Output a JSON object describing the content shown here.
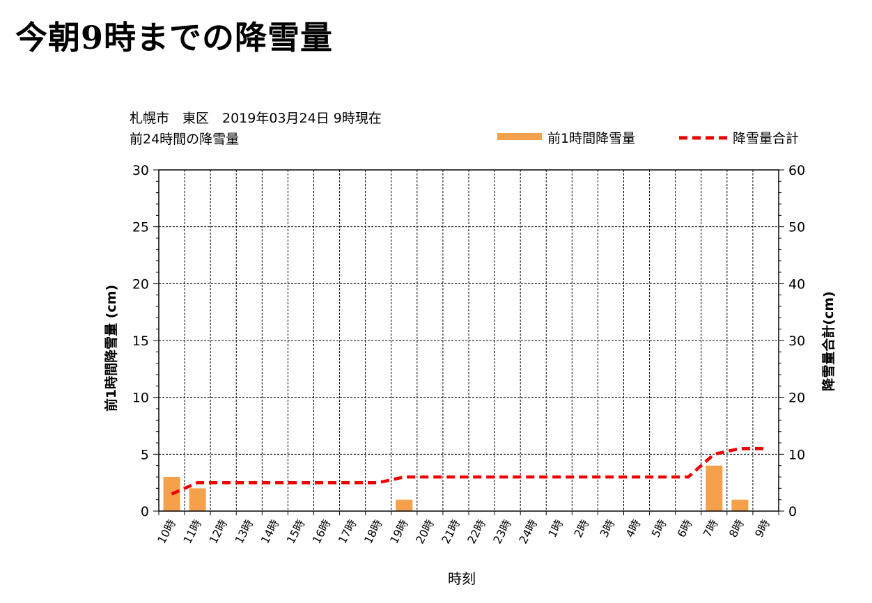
{
  "page": {
    "title": "今朝9時までの降雪量"
  },
  "colors": {
    "bar": "#f5a04a",
    "total_line": "#ee0000",
    "grid": "#000000",
    "axis": "#000000"
  },
  "chart_data": {
    "type": "bar",
    "header_line1": "札幌市　東区　2019年03月24日 9時現在",
    "header_line2": "前24時間の降雪量",
    "xlabel": "時刻",
    "ylabel": "前1時間降雪量 (cm)",
    "y2label": "降雪量合計(cm)",
    "ylim": [
      0,
      30
    ],
    "y2lim": [
      0,
      60
    ],
    "y_ticks": [
      "0",
      "5",
      "10",
      "15",
      "20",
      "25",
      "30"
    ],
    "y2_ticks": [
      "0",
      "10",
      "20",
      "30",
      "40",
      "50",
      "60"
    ],
    "grid": true,
    "legend_position": "top-right",
    "categories": [
      "10時",
      "11時",
      "12時",
      "13時",
      "14時",
      "15時",
      "16時",
      "17時",
      "18時",
      "19時",
      "20時",
      "21時",
      "22時",
      "23時",
      "24時",
      "1時",
      "2時",
      "3時",
      "4時",
      "5時",
      "6時",
      "7時",
      "8時",
      "9時"
    ],
    "series": [
      {
        "name": "前1時間降雪量",
        "type": "bar",
        "axis": "left",
        "values": [
          3,
          2,
          0,
          0,
          0,
          0,
          0,
          0,
          0,
          1,
          0,
          0,
          0,
          0,
          0,
          0,
          0,
          0,
          0,
          0,
          0,
          4,
          1,
          0
        ]
      },
      {
        "name": "降雪量合計",
        "type": "line",
        "axis": "right",
        "style": "dashed",
        "values": [
          3,
          5,
          5,
          5,
          5,
          5,
          5,
          5,
          5,
          6,
          6,
          6,
          6,
          6,
          6,
          6,
          6,
          6,
          6,
          6,
          6,
          10,
          11,
          11
        ]
      }
    ]
  }
}
